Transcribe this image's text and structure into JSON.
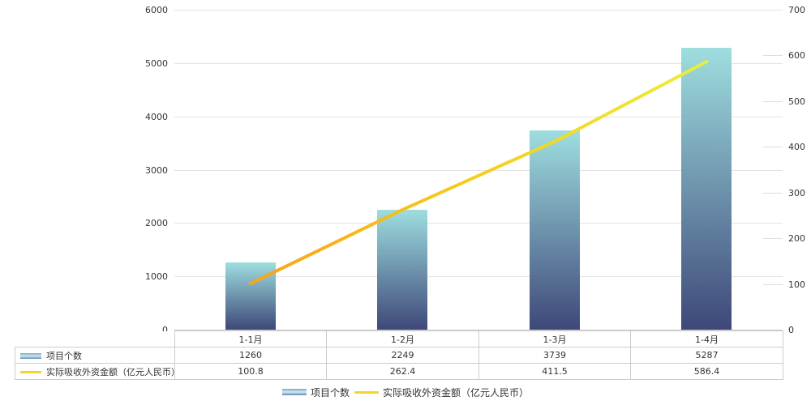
{
  "chart_data": {
    "type": "combo",
    "title": "",
    "categories": [
      "1-1月",
      "1-2月",
      "1-3月",
      "1-4月"
    ],
    "series": [
      {
        "name": "项目个数",
        "type": "bar",
        "axis": "left",
        "values": [
          1260,
          2249,
          3739,
          5287
        ]
      },
      {
        "name": "实际吸收外资金额（亿元人民币）",
        "type": "line",
        "axis": "right",
        "values": [
          100.8,
          262.4,
          411.5,
          586.4
        ]
      }
    ],
    "left_axis": {
      "min": 0,
      "max": 6000,
      "step": 1000,
      "tick_labels": [
        "0",
        "1000",
        "2000",
        "3000",
        "4000",
        "5000",
        "6000"
      ]
    },
    "right_axis": {
      "min": 0,
      "max": 700,
      "step": 100,
      "tick_labels": [
        "0",
        "100",
        "200",
        "300",
        "400",
        "500",
        "600",
        "700"
      ]
    },
    "grid": true,
    "legend_position": "bottom",
    "data_table_shown": true
  },
  "table": {
    "corner_label": "",
    "row_labels": [
      "项目个数",
      "实际吸收外资金额（亿元人民币）"
    ],
    "column_labels": [
      "1-1月",
      "1-2月",
      "1-3月",
      "1-4月"
    ],
    "rows": [
      [
        "1260",
        "2249",
        "3739",
        "5287"
      ],
      [
        "100.8",
        "262.4",
        "411.5",
        "586.4"
      ]
    ]
  },
  "legend": {
    "items": [
      {
        "label": "项目个数",
        "marker": "bar-swatch"
      },
      {
        "label": "实际吸收外资金额（亿元人民币）",
        "marker": "line-swatch"
      }
    ]
  },
  "colors": {
    "bar_gradient_top": "#9EDEDF",
    "bar_gradient_bottom": "#3E4879",
    "line_gradient_start": "#F7A41B",
    "line_gradient_mid": "#F6CE1D",
    "line_gradient_end": "#EAEF3A",
    "legend_bar_swatch_top": "#7CA6C4",
    "legend_bar_swatch_mid": "#D0ECF3",
    "legend_bar_swatch_bottom": "#6088B8",
    "legend_line_swatch": "#F5D42C",
    "gridline": "#E3E3E3",
    "axis_line": "#C8C8C8",
    "table_border": "#CCCCCC",
    "text": "#333333",
    "background": "#FFFFFF"
  }
}
